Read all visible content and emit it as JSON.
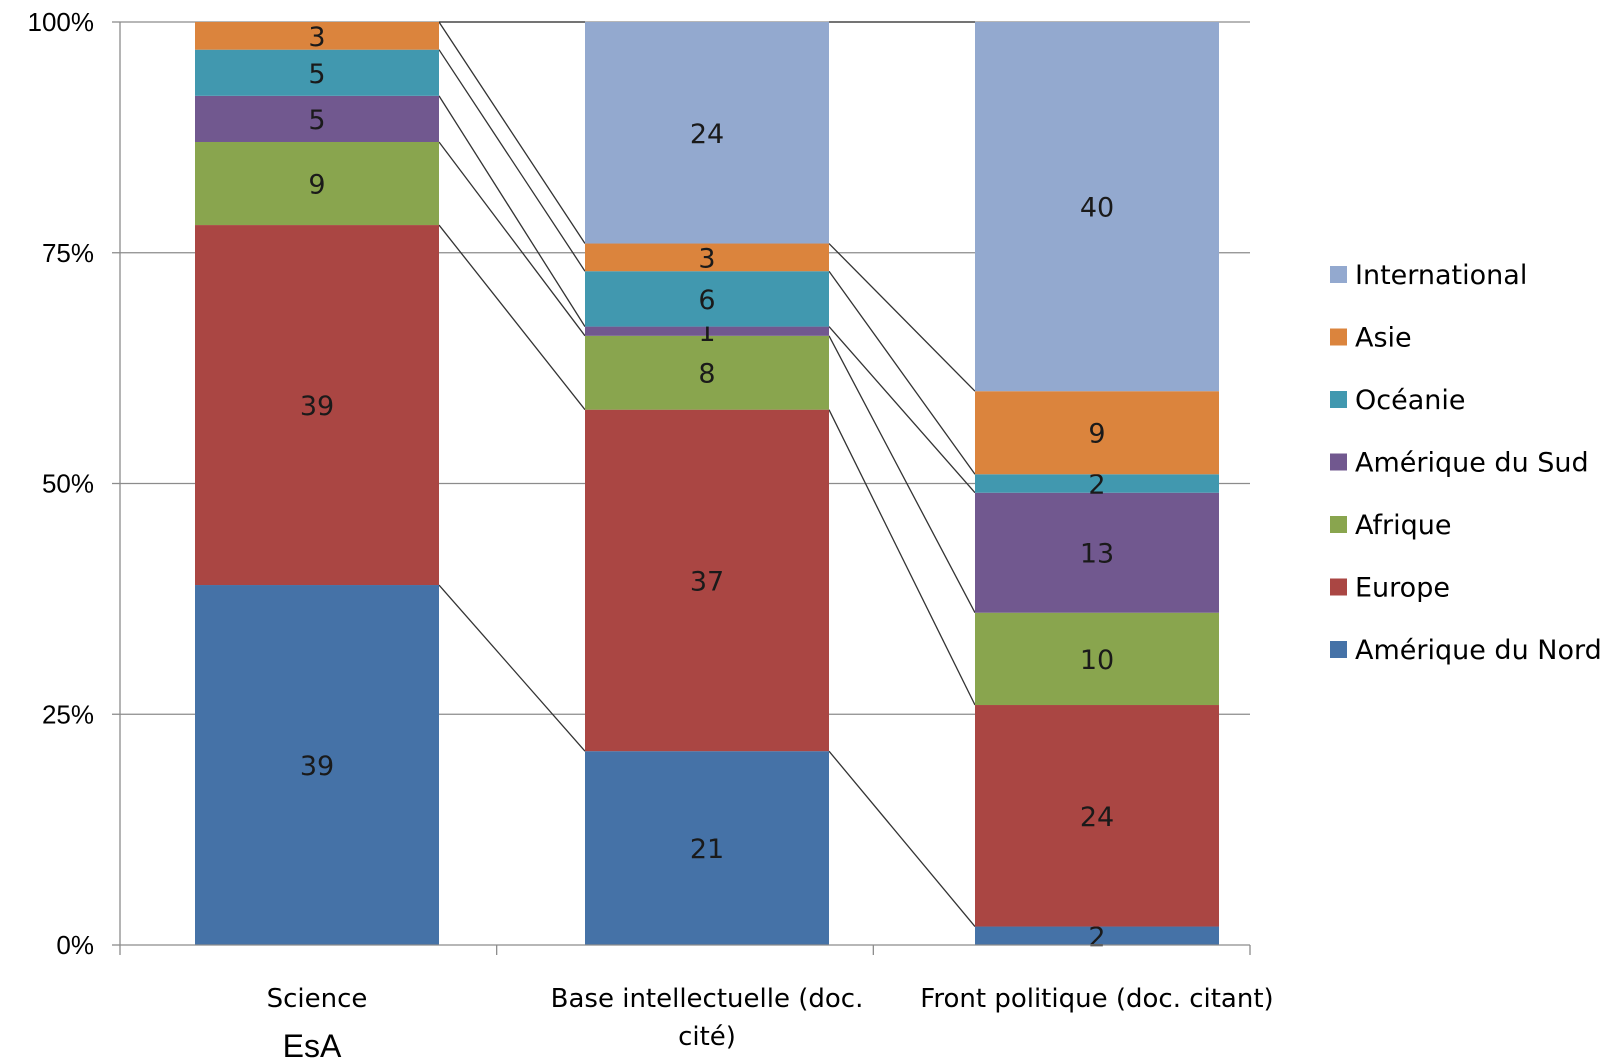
{
  "chart_data": {
    "type": "bar",
    "stacked": "percent",
    "categories": [
      "Science",
      "Base intellectuelle (doc. cité)",
      "Front politique (doc. citant)"
    ],
    "series": [
      {
        "name": "Amérique du Nord",
        "color": "#4572a7",
        "values": [
          39,
          21,
          2
        ]
      },
      {
        "name": "Europe",
        "color": "#aa4643",
        "values": [
          39,
          37,
          24
        ]
      },
      {
        "name": "Afrique",
        "color": "#89a54e",
        "values": [
          9,
          8,
          10
        ]
      },
      {
        "name": "Amérique du Sud",
        "color": "#71588f",
        "values": [
          5,
          1,
          13
        ]
      },
      {
        "name": "Océanie",
        "color": "#4198af",
        "values": [
          5,
          6,
          2
        ]
      },
      {
        "name": "Asie",
        "color": "#db843d",
        "values": [
          3,
          3,
          9
        ]
      },
      {
        "name": "International",
        "color": "#93a9cf",
        "values": [
          0,
          24,
          40
        ]
      }
    ],
    "yticks": [
      "0%",
      "25%",
      "50%",
      "75%",
      "100%"
    ],
    "ylim": [
      0,
      100
    ],
    "grid": true,
    "legend": "right",
    "series_lines": true
  },
  "annotation": "EsA"
}
